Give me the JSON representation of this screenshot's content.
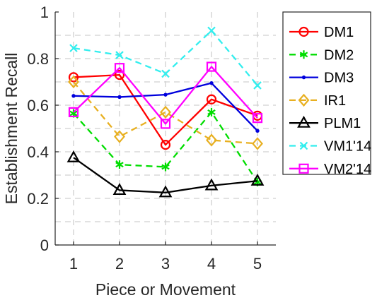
{
  "chart_data": {
    "type": "line",
    "xlabel": "Piece or Movement",
    "ylabel": "Establishment Recall",
    "x": [
      1,
      2,
      3,
      4,
      5
    ],
    "xlim": [
      0.6,
      5.4
    ],
    "ylim": [
      0,
      1
    ],
    "xticks": [
      "1",
      "2",
      "3",
      "4",
      "5"
    ],
    "yticks": [
      "0",
      "0.2",
      "0.4",
      "0.6",
      "0.8",
      "1"
    ],
    "grid": true,
    "legend_position": "top-right",
    "series": [
      {
        "name": "DM1",
        "color": "#ff0000",
        "dash": "solid",
        "marker": "circle",
        "values": [
          0.72,
          0.73,
          0.43,
          0.625,
          0.555
        ]
      },
      {
        "name": "DM2",
        "color": "#00dd00",
        "dash": "dashed",
        "marker": "asterisk",
        "values": [
          0.565,
          0.345,
          0.335,
          0.57,
          0.27
        ]
      },
      {
        "name": "DM3",
        "color": "#0000dd",
        "dash": "solid",
        "marker": "point",
        "values": [
          0.64,
          0.635,
          0.645,
          0.695,
          0.49
        ]
      },
      {
        "name": "IR1",
        "color": "#e8b021",
        "dash": "dashed",
        "marker": "diamond",
        "values": [
          0.7,
          0.465,
          0.57,
          0.45,
          0.435
        ]
      },
      {
        "name": "PLM1",
        "color": "#000000",
        "dash": "solid",
        "marker": "triangle",
        "values": [
          0.375,
          0.235,
          0.225,
          0.255,
          0.275
        ]
      },
      {
        "name": "VM1'14",
        "color": "#33eeee",
        "dash": "dashed",
        "marker": "x",
        "values": [
          0.845,
          0.815,
          0.735,
          0.92,
          0.685
        ]
      },
      {
        "name": "VM2'14",
        "color": "#ff00ff",
        "dash": "solid",
        "marker": "square",
        "values": [
          0.57,
          0.76,
          0.52,
          0.765,
          0.545
        ]
      }
    ]
  }
}
